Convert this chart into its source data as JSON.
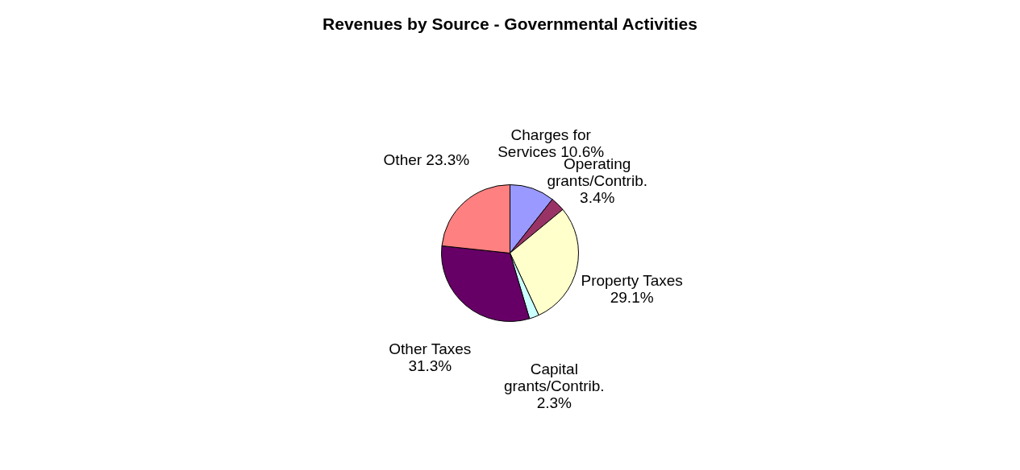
{
  "chart_data": {
    "type": "pie",
    "title": "Revenues by Source - Governmental Activities",
    "categories": [
      "Charges for Services",
      "Operating grants/Contrib.",
      "Property Taxes",
      "Capital grants/Contrib.",
      "Other Taxes",
      "Other"
    ],
    "values": [
      10.6,
      3.4,
      29.1,
      2.3,
      31.3,
      23.3
    ],
    "colors": [
      "#9999ff",
      "#993366",
      "#ffffcc",
      "#ccffff",
      "#660066",
      "#ff8080"
    ],
    "value_labels": [
      "10.6%",
      "3.4%",
      "29.1%",
      "2.3%",
      "31.3%",
      "23.3%"
    ],
    "legend": false
  }
}
